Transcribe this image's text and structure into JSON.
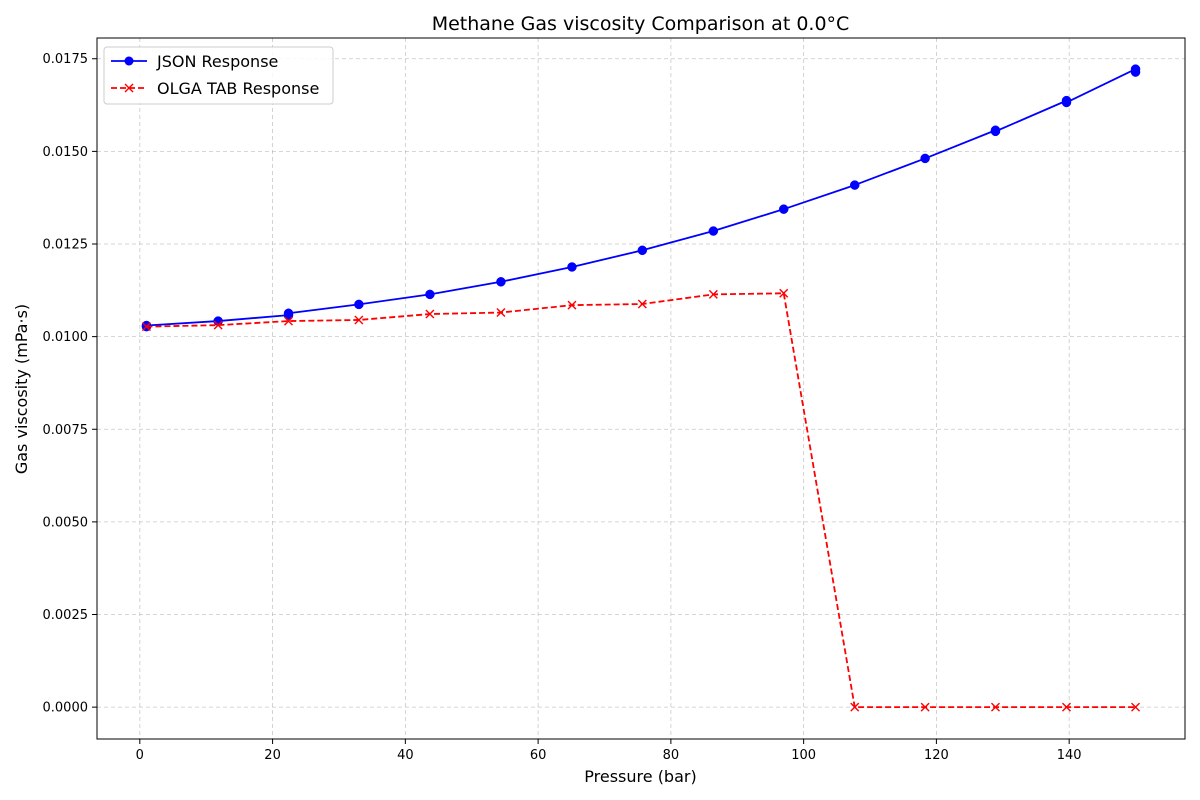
{
  "chart_data": {
    "type": "line",
    "title": "Methane Gas viscosity Comparison at 0.0°C",
    "xlabel": "Pressure (bar)",
    "ylabel": "Gas viscosity (mPa·s)",
    "xlim": [
      -6.45,
      157.45
    ],
    "ylim": [
      -0.00086,
      0.01806
    ],
    "xticks": [
      0,
      20,
      40,
      60,
      80,
      100,
      120,
      140
    ],
    "xtick_labels": [
      "0",
      "20",
      "40",
      "60",
      "80",
      "100",
      "120",
      "140"
    ],
    "yticks": [
      0.0,
      0.0025,
      0.005,
      0.0075,
      0.01,
      0.0125,
      0.015,
      0.0175
    ],
    "ytick_labels": [
      "0.0000",
      "0.0025",
      "0.0050",
      "0.0075",
      "0.0100",
      "0.0125",
      "0.0150",
      "0.0175"
    ],
    "grid": true,
    "legend_position": "top-left",
    "series": [
      {
        "name": "JSON Response",
        "color": "#0000ff",
        "line_style": "solid",
        "marker": "circle",
        "points": [
          [
            1.0,
            0.01027
          ],
          [
            1.0,
            0.0103
          ],
          [
            11.8,
            0.01042
          ],
          [
            22.4,
            0.01058
          ],
          [
            22.4,
            0.01063
          ],
          [
            33.0,
            0.01087
          ],
          [
            43.7,
            0.01114
          ],
          [
            54.4,
            0.01148
          ],
          [
            65.1,
            0.01188
          ],
          [
            75.7,
            0.01233
          ],
          [
            86.4,
            0.01285
          ],
          [
            97.0,
            0.01344
          ],
          [
            107.7,
            0.01409
          ],
          [
            118.3,
            0.01481
          ],
          [
            128.9,
            0.01557
          ],
          [
            128.9,
            0.01554
          ],
          [
            139.6,
            0.01637
          ],
          [
            139.6,
            0.01632
          ],
          [
            150.0,
            0.01722
          ],
          [
            150.0,
            0.01714
          ]
        ]
      },
      {
        "name": "OLGA TAB Response",
        "color": "#ff0000",
        "line_style": "dashed",
        "marker": "x",
        "points": [
          [
            1.0,
            0.01027
          ],
          [
            11.8,
            0.01031
          ],
          [
            22.4,
            0.01042
          ],
          [
            33.0,
            0.01045
          ],
          [
            43.7,
            0.01061
          ],
          [
            54.4,
            0.01065
          ],
          [
            65.1,
            0.01085
          ],
          [
            75.7,
            0.01088
          ],
          [
            86.4,
            0.01114
          ],
          [
            97.0,
            0.01117
          ],
          [
            107.7,
            0.0
          ],
          [
            118.3,
            0.0
          ],
          [
            128.9,
            0.0
          ],
          [
            139.6,
            0.0
          ],
          [
            150.0,
            0.0
          ]
        ]
      }
    ]
  }
}
